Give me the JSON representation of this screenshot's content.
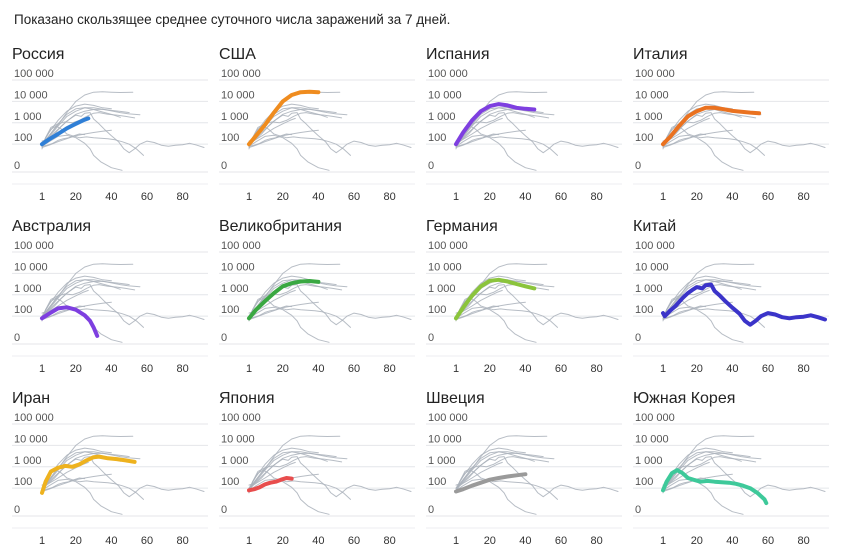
{
  "caption": "Показано скользящее среднее суточного числа заражений за 7 дней.",
  "chart_data": {
    "type": "line",
    "y_scale": "log",
    "y_ticks": [
      "0",
      "100",
      "1 000",
      "10 000",
      "100 000"
    ],
    "x_ticks": [
      "1",
      "20",
      "40",
      "60",
      "80"
    ],
    "xlim": [
      1,
      92
    ],
    "grid": "horizontal",
    "background_series_color": "#aab1bb",
    "panels": [
      {
        "name": "Россия",
        "color": "#2f7fd6",
        "points": [
          [
            1,
            100
          ],
          [
            5,
            170
          ],
          [
            10,
            300
          ],
          [
            15,
            550
          ],
          [
            20,
            900
          ],
          [
            24,
            1300
          ],
          [
            27,
            1600
          ]
        ]
      },
      {
        "name": "США",
        "color": "#ef8c1f",
        "points": [
          [
            1,
            100
          ],
          [
            5,
            250
          ],
          [
            10,
            800
          ],
          [
            15,
            3000
          ],
          [
            20,
            10000
          ],
          [
            25,
            20000
          ],
          [
            30,
            27000
          ],
          [
            35,
            28000
          ],
          [
            40,
            27000
          ]
        ]
      },
      {
        "name": "Испания",
        "color": "#7e3fe0",
        "points": [
          [
            1,
            100
          ],
          [
            5,
            350
          ],
          [
            10,
            1300
          ],
          [
            15,
            3500
          ],
          [
            20,
            6000
          ],
          [
            25,
            7500
          ],
          [
            30,
            6500
          ],
          [
            35,
            5000
          ],
          [
            40,
            4500
          ],
          [
            45,
            4200
          ]
        ]
      },
      {
        "name": "Италия",
        "color": "#ea7220",
        "points": [
          [
            1,
            100
          ],
          [
            5,
            220
          ],
          [
            10,
            700
          ],
          [
            15,
            2000
          ],
          [
            20,
            3500
          ],
          [
            25,
            5000
          ],
          [
            30,
            5000
          ],
          [
            35,
            4300
          ],
          [
            40,
            3600
          ],
          [
            45,
            3300
          ],
          [
            50,
            3000
          ],
          [
            55,
            2800
          ]
        ]
      },
      {
        "name": "Австралия",
        "color": "#7e3fe0",
        "points": [
          [
            1,
            80
          ],
          [
            5,
            130
          ],
          [
            10,
            230
          ],
          [
            15,
            260
          ],
          [
            20,
            200
          ],
          [
            25,
            110
          ],
          [
            28,
            60
          ],
          [
            30,
            30
          ],
          [
            32,
            12
          ]
        ]
      },
      {
        "name": "Великобритания",
        "color": "#3aa842",
        "points": [
          [
            1,
            80
          ],
          [
            5,
            200
          ],
          [
            10,
            500
          ],
          [
            15,
            1200
          ],
          [
            20,
            2500
          ],
          [
            25,
            3500
          ],
          [
            30,
            4200
          ],
          [
            35,
            4400
          ],
          [
            40,
            4000
          ]
        ]
      },
      {
        "name": "Германия",
        "color": "#8bc43c",
        "points": [
          [
            1,
            80
          ],
          [
            5,
            250
          ],
          [
            10,
            900
          ],
          [
            15,
            2500
          ],
          [
            20,
            4500
          ],
          [
            25,
            5000
          ],
          [
            30,
            4200
          ],
          [
            35,
            3200
          ],
          [
            40,
            2500
          ],
          [
            45,
            2000
          ]
        ]
      },
      {
        "name": "Китай",
        "color": "#3b34c9",
        "points": [
          [
            1,
            140
          ],
          [
            2,
            100
          ],
          [
            5,
            180
          ],
          [
            8,
            300
          ],
          [
            12,
            700
          ],
          [
            15,
            1200
          ],
          [
            18,
            1800
          ],
          [
            20,
            2300
          ],
          [
            23,
            2000
          ],
          [
            25,
            2800
          ],
          [
            28,
            3000
          ],
          [
            30,
            1500
          ],
          [
            33,
            900
          ],
          [
            36,
            500
          ],
          [
            40,
            250
          ],
          [
            44,
            130
          ],
          [
            47,
            60
          ],
          [
            50,
            40
          ],
          [
            53,
            60
          ],
          [
            56,
            100
          ],
          [
            60,
            140
          ],
          [
            64,
            120
          ],
          [
            68,
            90
          ],
          [
            72,
            80
          ],
          [
            76,
            90
          ],
          [
            80,
            95
          ],
          [
            84,
            110
          ],
          [
            88,
            90
          ],
          [
            92,
            70
          ]
        ]
      },
      {
        "name": "Иран",
        "color": "#eeb21e",
        "points": [
          [
            1,
            60
          ],
          [
            3,
            200
          ],
          [
            6,
            600
          ],
          [
            10,
            900
          ],
          [
            14,
            1100
          ],
          [
            18,
            1000
          ],
          [
            22,
            1300
          ],
          [
            26,
            2000
          ],
          [
            30,
            2800
          ],
          [
            33,
            3000
          ],
          [
            38,
            2500
          ],
          [
            43,
            2300
          ],
          [
            48,
            2000
          ],
          [
            53,
            1700
          ]
        ]
      },
      {
        "name": "Япония",
        "color": "#e84d4d",
        "points": [
          [
            1,
            80
          ],
          [
            4,
            90
          ],
          [
            7,
            110
          ],
          [
            10,
            150
          ],
          [
            13,
            180
          ],
          [
            16,
            200
          ],
          [
            19,
            250
          ],
          [
            22,
            300
          ],
          [
            25,
            280
          ]
        ]
      },
      {
        "name": "Швеция",
        "color": "#9a9a9a",
        "points": [
          [
            1,
            70
          ],
          [
            5,
            90
          ],
          [
            10,
            130
          ],
          [
            15,
            180
          ],
          [
            20,
            250
          ],
          [
            25,
            300
          ],
          [
            30,
            350
          ],
          [
            35,
            400
          ],
          [
            40,
            450
          ]
        ]
      },
      {
        "name": "Южная Корея",
        "color": "#3ec99a",
        "points": [
          [
            1,
            80
          ],
          [
            3,
            200
          ],
          [
            6,
            500
          ],
          [
            9,
            700
          ],
          [
            12,
            500
          ],
          [
            15,
            300
          ],
          [
            18,
            250
          ],
          [
            22,
            200
          ],
          [
            26,
            220
          ],
          [
            30,
            200
          ],
          [
            34,
            190
          ],
          [
            38,
            180
          ],
          [
            42,
            160
          ],
          [
            46,
            130
          ],
          [
            50,
            100
          ],
          [
            54,
            60
          ],
          [
            58,
            30
          ],
          [
            59,
            20
          ]
        ]
      }
    ],
    "background_series": [
      [
        [
          1,
          100
        ],
        [
          5,
          250
        ],
        [
          10,
          800
        ],
        [
          15,
          3000
        ],
        [
          20,
          10000
        ],
        [
          25,
          20000
        ],
        [
          30,
          27000
        ],
        [
          35,
          28000
        ],
        [
          40,
          27000
        ],
        [
          45,
          26000
        ],
        [
          52,
          27000
        ]
      ],
      [
        [
          1,
          100
        ],
        [
          5,
          350
        ],
        [
          10,
          1300
        ],
        [
          15,
          3500
        ],
        [
          20,
          6000
        ],
        [
          25,
          7500
        ],
        [
          30,
          6500
        ],
        [
          35,
          5000
        ],
        [
          40,
          4500
        ]
      ],
      [
        [
          1,
          100
        ],
        [
          5,
          220
        ],
        [
          10,
          700
        ],
        [
          15,
          2000
        ],
        [
          20,
          3500
        ],
        [
          25,
          5000
        ],
        [
          30,
          5000
        ],
        [
          35,
          4300
        ],
        [
          40,
          3600
        ],
        [
          45,
          3000
        ],
        [
          50,
          2600
        ],
        [
          56,
          2400
        ]
      ],
      [
        [
          1,
          80
        ],
        [
          5,
          250
        ],
        [
          10,
          900
        ],
        [
          15,
          2500
        ],
        [
          20,
          4500
        ],
        [
          25,
          5000
        ],
        [
          30,
          4200
        ],
        [
          35,
          3200
        ],
        [
          40,
          2500
        ],
        [
          45,
          1800
        ]
      ],
      [
        [
          1,
          80
        ],
        [
          5,
          200
        ],
        [
          10,
          500
        ],
        [
          15,
          1200
        ],
        [
          20,
          2500
        ],
        [
          25,
          3500
        ],
        [
          30,
          4200
        ],
        [
          35,
          4300
        ],
        [
          40,
          3800
        ],
        [
          45,
          3400
        ],
        [
          50,
          3000
        ]
      ],
      [
        [
          1,
          100
        ],
        [
          5,
          170
        ],
        [
          10,
          300
        ],
        [
          15,
          550
        ],
        [
          20,
          900
        ],
        [
          24,
          1300
        ],
        [
          27,
          1600
        ]
      ],
      [
        [
          1,
          60
        ],
        [
          3,
          200
        ],
        [
          6,
          600
        ],
        [
          10,
          900
        ],
        [
          14,
          1100
        ],
        [
          18,
          1000
        ],
        [
          22,
          1300
        ],
        [
          26,
          2000
        ],
        [
          30,
          2800
        ],
        [
          33,
          3000
        ],
        [
          38,
          2500
        ],
        [
          43,
          2300
        ],
        [
          48,
          2000
        ],
        [
          53,
          1700
        ]
      ],
      [
        [
          1,
          70
        ],
        [
          5,
          90
        ],
        [
          10,
          130
        ],
        [
          15,
          180
        ],
        [
          20,
          250
        ],
        [
          25,
          300
        ],
        [
          30,
          350
        ],
        [
          35,
          400
        ],
        [
          40,
          450
        ]
      ],
      [
        [
          1,
          80
        ],
        [
          3,
          200
        ],
        [
          6,
          500
        ],
        [
          9,
          700
        ],
        [
          12,
          500
        ],
        [
          15,
          300
        ],
        [
          18,
          250
        ],
        [
          22,
          200
        ],
        [
          26,
          220
        ],
        [
          30,
          200
        ],
        [
          34,
          190
        ],
        [
          38,
          180
        ],
        [
          42,
          160
        ],
        [
          46,
          130
        ],
        [
          50,
          100
        ],
        [
          54,
          60
        ],
        [
          58,
          30
        ]
      ],
      [
        [
          1,
          80
        ],
        [
          5,
          130
        ],
        [
          10,
          230
        ],
        [
          15,
          260
        ],
        [
          20,
          200
        ],
        [
          25,
          110
        ],
        [
          28,
          60
        ],
        [
          30,
          30
        ],
        [
          34,
          15
        ],
        [
          40,
          8
        ],
        [
          46,
          6
        ]
      ],
      [
        [
          1,
          80
        ],
        [
          4,
          90
        ],
        [
          7,
          110
        ],
        [
          10,
          150
        ],
        [
          13,
          180
        ],
        [
          16,
          200
        ],
        [
          19,
          250
        ],
        [
          22,
          300
        ],
        [
          25,
          280
        ]
      ],
      [
        [
          1,
          140
        ],
        [
          5,
          180
        ],
        [
          8,
          300
        ],
        [
          12,
          700
        ],
        [
          15,
          1200
        ],
        [
          18,
          1800
        ],
        [
          20,
          2300
        ],
        [
          23,
          2000
        ],
        [
          25,
          2800
        ],
        [
          28,
          3000
        ],
        [
          30,
          1500
        ],
        [
          33,
          900
        ],
        [
          36,
          500
        ],
        [
          40,
          250
        ],
        [
          44,
          130
        ],
        [
          47,
          60
        ],
        [
          50,
          40
        ],
        [
          53,
          60
        ],
        [
          56,
          100
        ],
        [
          60,
          140
        ],
        [
          64,
          120
        ],
        [
          68,
          90
        ],
        [
          72,
          80
        ],
        [
          76,
          90
        ],
        [
          80,
          95
        ],
        [
          84,
          110
        ],
        [
          88,
          90
        ],
        [
          92,
          70
        ]
      ]
    ]
  }
}
